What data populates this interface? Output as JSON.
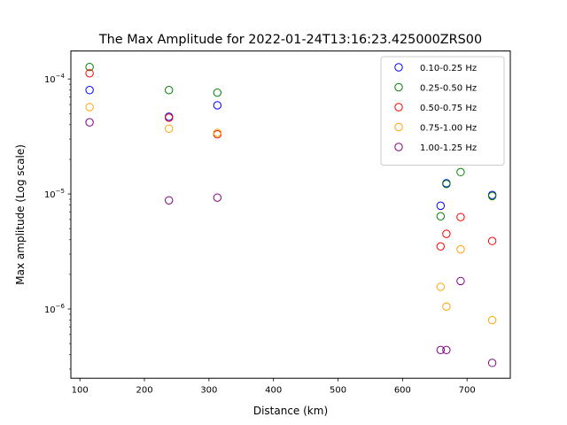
{
  "chart_data": {
    "type": "scatter",
    "title": "The Max Amplitude for 2022-01-24T13:16:23.425000ZRS00",
    "xlabel": "Distance (km)",
    "ylabel": "Max amplitude (Log scale)",
    "xlim": [
      86,
      767
    ],
    "ylim": [
      2.5e-07,
      0.000175
    ],
    "yscale": "log",
    "grid": false,
    "legend_position": "top-right",
    "marker": "hollow-circle",
    "x_ticks": [
      100,
      200,
      300,
      400,
      500,
      600,
      700
    ],
    "x_tick_labels": [
      "100",
      "200",
      "300",
      "400",
      "500",
      "600",
      "700"
    ],
    "y_ticks": [
      1e-06,
      1e-05,
      0.0001
    ],
    "series": [
      {
        "name": "0.10-0.25 Hz",
        "color": "#0000ff",
        "points": [
          [
            115,
            8e-05
          ],
          [
            238,
            4.7e-05
          ],
          [
            313,
            5.9e-05
          ],
          [
            659,
            7.9e-06
          ],
          [
            668,
            1.24e-05
          ],
          [
            739,
            9.8e-06
          ]
        ]
      },
      {
        "name": "0.25-0.50 Hz",
        "color": "#008000",
        "points": [
          [
            115,
            0.000127
          ],
          [
            238,
            8e-05
          ],
          [
            313,
            7.6e-05
          ],
          [
            659,
            6.4e-06
          ],
          [
            668,
            1.22e-05
          ],
          [
            690,
            1.55e-05
          ],
          [
            739,
            9.6e-06
          ]
        ]
      },
      {
        "name": "0.50-0.75 Hz",
        "color": "#ff0000",
        "points": [
          [
            115,
            0.000112
          ],
          [
            238,
            4.6e-05
          ],
          [
            313,
            3.3e-05
          ],
          [
            659,
            3.5e-06
          ],
          [
            668,
            4.5e-06
          ],
          [
            690,
            6.3e-06
          ],
          [
            739,
            3.9e-06
          ]
        ]
      },
      {
        "name": "0.75-1.00 Hz",
        "color": "#ffa500",
        "points": [
          [
            115,
            5.7e-05
          ],
          [
            238,
            3.7e-05
          ],
          [
            313,
            3.4e-05
          ],
          [
            659,
            1.56e-06
          ],
          [
            668,
            1.05e-06
          ],
          [
            690,
            3.3e-06
          ],
          [
            739,
            8e-07
          ]
        ]
      },
      {
        "name": "1.00-1.25 Hz",
        "color": "#800080",
        "points": [
          [
            115,
            4.2e-05
          ],
          [
            238,
            8.8e-06
          ],
          [
            313,
            9.3e-06
          ],
          [
            659,
            4.4e-07
          ],
          [
            668,
            4.4e-07
          ],
          [
            690,
            1.75e-06
          ],
          [
            739,
            3.4e-07
          ]
        ]
      }
    ]
  }
}
